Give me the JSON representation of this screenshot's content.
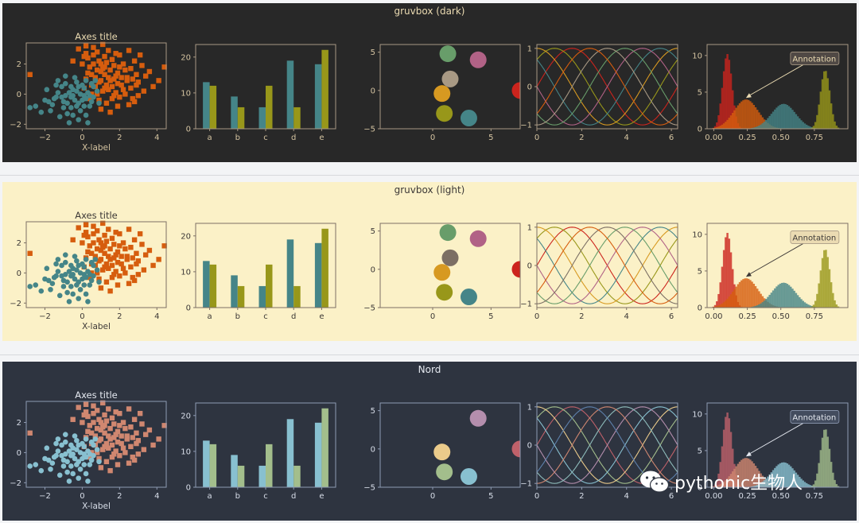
{
  "themes": [
    {
      "title": "gruvbox (dark)",
      "bg": "#282828",
      "axes_bg": "#282828",
      "fg": "#ebdbb2",
      "text": "#d5c4a1",
      "frame": "#a89984",
      "c1": "#458588",
      "c2": "#d65d0e",
      "c3": "#98971a",
      "annot_bg": "#504945",
      "annot_fg": "#ebdbb2",
      "annot_edge": "#a89984",
      "circles": [
        "#689d6a",
        "#b16286",
        "#a89984",
        "#d79921",
        "#98971a",
        "#458588",
        "#cc241d"
      ],
      "lines": [
        "#cc241d",
        "#98971a",
        "#d79921",
        "#458588",
        "#b16286",
        "#689d6a",
        "#a89984",
        "#d65d0e"
      ],
      "hist": [
        "#cc241d",
        "#d65d0e",
        "#458588",
        "#98971a"
      ]
    },
    {
      "title": "gruvbox (light)",
      "bg": "#fbf1c7",
      "axes_bg": "#fbf1c7",
      "fg": "#3c3836",
      "text": "#3c3836",
      "frame": "#7c6f64",
      "c1": "#458588",
      "c2": "#d65d0e",
      "c3": "#98971a",
      "annot_bg": "#ebdbb2",
      "annot_fg": "#3c3836",
      "annot_edge": "#a89984",
      "circles": [
        "#689d6a",
        "#b16286",
        "#7c6f64",
        "#d79921",
        "#98971a",
        "#458588",
        "#cc241d"
      ],
      "lines": [
        "#cc241d",
        "#98971a",
        "#d79921",
        "#458588",
        "#b16286",
        "#689d6a",
        "#7c6f64",
        "#d65d0e"
      ],
      "hist": [
        "#cc241d",
        "#d65d0e",
        "#458588",
        "#98971a"
      ]
    },
    {
      "title": "Nord",
      "bg": "#2e3440",
      "axes_bg": "#2e3440",
      "fg": "#e5e9f0",
      "text": "#d8dee9",
      "frame": "#8f9bb3",
      "c1": "#88c0d0",
      "c2": "#d08770",
      "c3": "#a3be8c",
      "annot_bg": "#434c5e",
      "annot_fg": "#e5e9f0",
      "annot_edge": "#8f9bb3",
      "circles": [
        "#2e3440",
        "#b48ead",
        "#2e3440",
        "#ebcb8b",
        "#a3be8c",
        "#88c0d0",
        "#bf616a"
      ],
      "lines": [
        "#bf616a",
        "#a3be8c",
        "#ebcb8b",
        "#88c0d0",
        "#b48ead",
        "#8fbcbb",
        "#d08770",
        "#5e81ac"
      ],
      "hist": [
        "#bf616a",
        "#d08770",
        "#88c0d0",
        "#a3be8c"
      ]
    }
  ],
  "chart_data": [
    {
      "type": "scatter",
      "title": "Axes title",
      "xlabel": "X-label",
      "ylabel": "",
      "xlim": [
        -3,
        4.5
      ],
      "ylim": [
        -2.3,
        3.4
      ],
      "xticks": [
        -2,
        0,
        2,
        4
      ],
      "yticks": [
        -2,
        0,
        2
      ],
      "series": [
        {
          "points": [
            [
              -1.0,
              -0.5
            ],
            [
              -0.5,
              0.3
            ],
            [
              -0.9,
              -0.1
            ],
            [
              -0.2,
              -0.6
            ],
            [
              0.1,
              0.4
            ],
            [
              -1.4,
              -0.2
            ],
            [
              -0.6,
              -0.9
            ],
            [
              0.2,
              -0.3
            ],
            [
              -0.3,
              0.8
            ],
            [
              -1.1,
              0.5
            ],
            [
              0.4,
              -0.8
            ],
            [
              -0.8,
              -1.3
            ],
            [
              0.3,
              0.1
            ],
            [
              -1.6,
              -0.7
            ],
            [
              -0.1,
              -1.1
            ],
            [
              0.6,
              -0.2
            ],
            [
              -0.4,
              -0.4
            ],
            [
              -1.3,
              0.9
            ],
            [
              0.0,
              0.6
            ],
            [
              -0.7,
              0.1
            ],
            [
              0.8,
              0.2
            ],
            [
              -2.0,
              -0.4
            ],
            [
              -0.2,
              -1.7
            ],
            [
              0.5,
              0.7
            ],
            [
              -1.7,
              -1.1
            ],
            [
              -0.5,
              -0.1
            ],
            [
              0.2,
              -1.4
            ],
            [
              -0.9,
              1.2
            ],
            [
              0.9,
              -0.6
            ],
            [
              -2.5,
              -0.8
            ],
            [
              -1.2,
              -1.5
            ],
            [
              0.7,
              0.9
            ],
            [
              -0.3,
              0.2
            ],
            [
              -0.8,
              -0.6
            ],
            [
              0.1,
              -0.8
            ],
            [
              -1.9,
              0.3
            ],
            [
              -0.6,
              0.5
            ],
            [
              0.4,
              -0.1
            ],
            [
              -1.5,
              -0.3
            ],
            [
              -0.1,
              0.0
            ],
            [
              -2.2,
              -1.2
            ],
            [
              -0.4,
              1.1
            ],
            [
              0.3,
              -1.9
            ],
            [
              -1.0,
              -0.9
            ],
            [
              0.6,
              0.5
            ],
            [
              -0.7,
              -1.9
            ],
            [
              -1.3,
              0.1
            ],
            [
              0.0,
              -0.4
            ],
            [
              -2.8,
              -0.9
            ],
            [
              -0.9,
              0.7
            ],
            [
              0.2,
              0.9
            ],
            [
              -0.5,
              -1.4
            ],
            [
              -1.8,
              -0.5
            ],
            [
              0.5,
              -0.5
            ],
            [
              -0.2,
              0.5
            ],
            [
              -1.1,
              -0.2
            ],
            [
              -0.6,
              -0.2
            ],
            [
              0.1,
              -0.1
            ],
            [
              -1.4,
              0.6
            ],
            [
              -0.3,
              -0.8
            ]
          ]
        },
        {
          "points": [
            [
              1.0,
              1.5
            ],
            [
              0.5,
              0.6
            ],
            [
              1.8,
              1.2
            ],
            [
              2.2,
              0.3
            ],
            [
              1.3,
              2.1
            ],
            [
              0.2,
              1.0
            ],
            [
              2.6,
              1.7
            ],
            [
              1.6,
              -0.3
            ],
            [
              0.8,
              2.8
            ],
            [
              3.0,
              0.8
            ],
            [
              1.1,
              0.2
            ],
            [
              2.0,
              2.6
            ],
            [
              0.4,
              1.8
            ],
            [
              1.5,
              0.9
            ],
            [
              2.8,
              2.2
            ],
            [
              0.1,
              0.4
            ],
            [
              1.9,
              -0.8
            ],
            [
              0.6,
              3.1
            ],
            [
              2.4,
              1.1
            ],
            [
              1.2,
              1.3
            ],
            [
              3.3,
              0.2
            ],
            [
              0.9,
              -0.4
            ],
            [
              1.7,
              1.9
            ],
            [
              2.1,
              0.6
            ],
            [
              0.3,
              2.4
            ],
            [
              1.4,
              2.9
            ],
            [
              2.7,
              -0.3
            ],
            [
              0.7,
              1.1
            ],
            [
              1.0,
              -1.0
            ],
            [
              3.6,
              1.5
            ],
            [
              1.6,
              0.5
            ],
            [
              0.0,
              2.0
            ],
            [
              2.3,
              1.6
            ],
            [
              1.2,
              2.5
            ],
            [
              0.5,
              0.0
            ],
            [
              2.9,
              1.3
            ],
            [
              1.8,
              0.1
            ],
            [
              0.8,
              1.6
            ],
            [
              4.1,
              0.9
            ],
            [
              1.3,
              -0.6
            ],
            [
              2.5,
              2.9
            ],
            [
              0.2,
              2.7
            ],
            [
              1.5,
              1.6
            ],
            [
              2.0,
              -0.2
            ],
            [
              3.2,
              1.9
            ],
            [
              0.9,
              0.8
            ],
            [
              1.1,
              3.3
            ],
            [
              2.6,
              0.4
            ],
            [
              1.7,
              1.0
            ],
            [
              0.4,
              -0.3
            ],
            [
              -0.5,
              2.2
            ],
            [
              2.2,
              2.0
            ],
            [
              1.4,
              0.3
            ],
            [
              3.8,
              0.5
            ],
            [
              0.6,
              2.0
            ],
            [
              1.9,
              1.4
            ],
            [
              2.8,
              -0.5
            ],
            [
              1.0,
              0.9
            ],
            [
              -2.8,
              1.3
            ],
            [
              1.2,
              1.8
            ],
            [
              0.3,
              1.4
            ],
            [
              2.4,
              0.9
            ],
            [
              1.6,
              2.3
            ],
            [
              3.0,
              -0.1
            ],
            [
              0.7,
              0.5
            ],
            [
              2.1,
              1.1
            ],
            [
              1.3,
              0.6
            ],
            [
              -0.2,
              3.0
            ],
            [
              4.4,
              1.8
            ],
            [
              1.8,
              2.7
            ],
            [
              0.9,
              2.2
            ],
            [
              2.7,
              1.0
            ],
            [
              1.5,
              -1.2
            ],
            [
              0.1,
              2.5
            ],
            [
              2.3,
              0.0
            ],
            [
              1.1,
              1.7
            ],
            [
              3.4,
              1.2
            ],
            [
              0.5,
              1.3
            ],
            [
              1.9,
              0.7
            ],
            [
              2.5,
              -0.7
            ],
            [
              1.0,
              2.0
            ],
            [
              0.8,
              0.0
            ],
            [
              2.0,
              1.8
            ],
            [
              1.4,
              1.1
            ],
            [
              3.1,
              2.6
            ],
            [
              0.2,
              3.2
            ],
            [
              1.7,
              -0.1
            ],
            [
              2.9,
              0.6
            ],
            [
              0.6,
              2.6
            ],
            [
              1.2,
              0.4
            ]
          ]
        }
      ]
    },
    {
      "type": "bar",
      "categories": [
        "a",
        "b",
        "c",
        "d",
        "e"
      ],
      "series": [
        {
          "values": [
            13,
            9,
            6,
            19,
            18
          ]
        },
        {
          "values": [
            12,
            6,
            12,
            6,
            22
          ]
        }
      ],
      "ylim": [
        0,
        23.5
      ],
      "yticks": [
        0,
        10,
        20
      ]
    },
    {
      "type": "scatter",
      "xlim": [
        -4.5,
        7.5
      ],
      "ylim": [
        -5,
        6
      ],
      "xticks": [
        0,
        5
      ],
      "yticks": [
        -5,
        0,
        5
      ],
      "circles": [
        [
          1.3,
          4.8
        ],
        [
          3.9,
          4.0
        ],
        [
          1.5,
          1.5
        ],
        [
          0.8,
          -0.4
        ],
        [
          1.0,
          -3.0
        ],
        [
          3.1,
          -3.6
        ],
        [
          7.5,
          0.0
        ]
      ]
    },
    {
      "type": "line",
      "xlim": [
        0,
        6.28
      ],
      "ylim": [
        -1.1,
        1.1
      ],
      "xticks": [
        0,
        2,
        4,
        6
      ],
      "yticks": [
        -1,
        0,
        1
      ],
      "function": "sin(x + k*pi/4)",
      "phases": [
        0,
        0.785,
        1.571,
        2.356,
        3.142,
        3.927,
        4.712,
        5.498
      ]
    },
    {
      "type": "bar",
      "subtype": "histogram",
      "xlim": [
        -0.05,
        1.0
      ],
      "ylim": [
        0,
        11.5
      ],
      "xticks": [
        0,
        0.25,
        0.5,
        0.75
      ],
      "xticklabels": [
        "0.00",
        "0.25",
        "0.50",
        "0.75"
      ],
      "yticks": [
        0,
        5,
        10
      ],
      "bins": 80,
      "distributions": [
        {
          "mean": 0.1,
          "sd": 0.035,
          "peak": 10.2
        },
        {
          "mean": 0.24,
          "sd": 0.09,
          "peak": 4.0
        },
        {
          "mean": 0.52,
          "sd": 0.09,
          "peak": 3.4
        },
        {
          "mean": 0.83,
          "sd": 0.035,
          "peak": 8.0
        }
      ],
      "annotation": {
        "text": "Annotation",
        "xy": [
          0.24,
          4.2
        ],
        "xytext": [
          0.75,
          9.5
        ]
      }
    }
  ],
  "watermark": "pythonic生物人"
}
